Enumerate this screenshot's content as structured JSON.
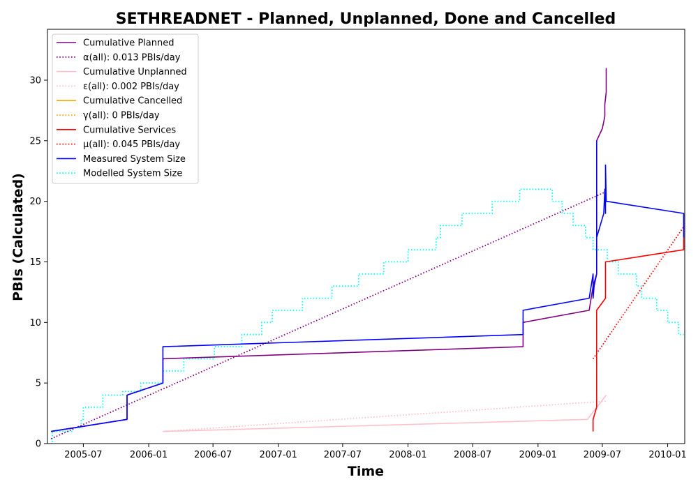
{
  "chart_data": {
    "type": "line",
    "title": "SETHREADNET - Planned, Unplanned, Done  and Cancelled",
    "xlabel": "Time",
    "ylabel": "PBIs (Calculated)",
    "xlim": [
      "2005-03-22",
      "2010-02-18"
    ],
    "ylim": [
      0,
      34.2
    ],
    "xticks": [
      {
        "date": "2005-07-01",
        "label": "2005-07"
      },
      {
        "date": "2006-01-01",
        "label": "2006-01"
      },
      {
        "date": "2006-07-01",
        "label": "2006-07"
      },
      {
        "date": "2007-01-01",
        "label": "2007-01"
      },
      {
        "date": "2007-07-01",
        "label": "2007-07"
      },
      {
        "date": "2008-01-01",
        "label": "2008-01"
      },
      {
        "date": "2008-07-01",
        "label": "2008-07"
      },
      {
        "date": "2009-01-01",
        "label": "2009-01"
      },
      {
        "date": "2009-07-01",
        "label": "2009-07"
      },
      {
        "date": "2010-01-01",
        "label": "2010-01"
      }
    ],
    "yticks": [
      0,
      5,
      10,
      15,
      20,
      25,
      30
    ],
    "grid": false,
    "legend_position": "top-left",
    "series": [
      {
        "name": "Cumulative Planned",
        "color": "#800080",
        "style": "solid",
        "points": [
          [
            "2005-04-01",
            1
          ],
          [
            "2005-11-01",
            2
          ],
          [
            "2005-11-01",
            4
          ],
          [
            "2006-02-10",
            5
          ],
          [
            "2006-02-10",
            7
          ],
          [
            "2008-11-20",
            8
          ],
          [
            "2008-11-20",
            10
          ],
          [
            "2009-05-25",
            11
          ],
          [
            "2009-06-05",
            13
          ],
          [
            "2009-06-15",
            14
          ],
          [
            "2009-06-15",
            25
          ],
          [
            "2009-07-01",
            26
          ],
          [
            "2009-07-08",
            27
          ],
          [
            "2009-07-08",
            28
          ],
          [
            "2009-07-12",
            29
          ],
          [
            "2009-07-12",
            31
          ]
        ]
      },
      {
        "name": "α(all): 0.013 PBIs/day",
        "color": "#800080",
        "style": "dotted",
        "points": [
          [
            "2005-04-01",
            0.4
          ],
          [
            "2009-07-12",
            20.8
          ]
        ]
      },
      {
        "name": "Cumulative Unplanned",
        "color": "#ffc0cb",
        "style": "solid",
        "points": [
          [
            "2006-02-10",
            1
          ],
          [
            "2009-05-20",
            2
          ],
          [
            "2009-07-12",
            4
          ]
        ]
      },
      {
        "name": "ε(all): 0.002 PBIs/day",
        "color": "#ffc0cb",
        "style": "dotted",
        "points": [
          [
            "2006-02-10",
            1
          ],
          [
            "2009-07-12",
            3.5
          ]
        ]
      },
      {
        "name": "Cumulative Cancelled",
        "color": "#ffa500",
        "style": "solid",
        "points": []
      },
      {
        "name": "γ(all): 0 PBIs/day",
        "color": "#ffa500",
        "style": "dotted",
        "points": []
      },
      {
        "name": "Cumulative Services",
        "color": "#ff0000",
        "style": "solid",
        "points": [
          [
            "2009-06-05",
            1
          ],
          [
            "2009-06-05",
            2
          ],
          [
            "2009-06-15",
            3
          ],
          [
            "2009-06-15",
            11
          ],
          [
            "2009-07-10",
            12
          ],
          [
            "2009-07-10",
            15
          ],
          [
            "2010-02-15",
            16
          ],
          [
            "2010-02-15",
            17
          ]
        ]
      },
      {
        "name": "μ(all): 0.045 PBIs/day",
        "color": "#ff0000",
        "style": "dotted",
        "points": [
          [
            "2009-06-05",
            7
          ],
          [
            "2010-02-15",
            17.9
          ]
        ]
      },
      {
        "name": "Measured System Size",
        "color": "#0000ff",
        "style": "solid",
        "points": [
          [
            "2005-04-01",
            1
          ],
          [
            "2005-11-01",
            2
          ],
          [
            "2005-11-01",
            4
          ],
          [
            "2006-02-10",
            5
          ],
          [
            "2006-02-10",
            8
          ],
          [
            "2008-11-20",
            9
          ],
          [
            "2008-11-20",
            11
          ],
          [
            "2009-05-25",
            12
          ],
          [
            "2009-06-05",
            14
          ],
          [
            "2009-06-05",
            12
          ],
          [
            "2009-06-08",
            13
          ],
          [
            "2009-06-15",
            14
          ],
          [
            "2009-06-15",
            25
          ],
          [
            "2009-06-15",
            17
          ],
          [
            "2009-07-05",
            19
          ],
          [
            "2009-07-08",
            21
          ],
          [
            "2009-07-10",
            19
          ],
          [
            "2009-07-10",
            23
          ],
          [
            "2009-07-12",
            20
          ],
          [
            "2010-02-15",
            19
          ],
          [
            "2010-02-15",
            17
          ]
        ]
      },
      {
        "name": "Modelled System Size",
        "color": "#00ffff",
        "style": "dotted",
        "steps": [
          [
            "2005-04-01",
            0
          ],
          [
            "2005-04-05",
            1
          ],
          [
            "2005-06-01",
            1.3
          ],
          [
            "2005-06-25",
            2
          ],
          [
            "2005-07-01",
            3
          ],
          [
            "2005-08-25",
            4
          ],
          [
            "2005-10-20",
            4.3
          ],
          [
            "2005-12-10",
            5
          ],
          [
            "2006-02-10",
            6
          ],
          [
            "2006-04-10",
            7
          ],
          [
            "2006-07-05",
            8
          ],
          [
            "2006-09-20",
            9
          ],
          [
            "2006-11-15",
            10
          ],
          [
            "2006-12-15",
            11
          ],
          [
            "2007-03-10",
            12
          ],
          [
            "2007-06-01",
            13
          ],
          [
            "2007-08-15",
            14
          ],
          [
            "2007-10-25",
            15
          ],
          [
            "2008-01-01",
            16
          ],
          [
            "2008-03-20",
            17
          ],
          [
            "2008-04-01",
            18
          ],
          [
            "2008-06-01",
            19
          ],
          [
            "2008-08-25",
            20
          ],
          [
            "2008-11-10",
            21
          ],
          [
            "2009-02-10",
            20
          ],
          [
            "2009-03-10",
            19
          ],
          [
            "2009-04-10",
            18
          ],
          [
            "2009-05-15",
            17
          ],
          [
            "2009-06-05",
            16
          ],
          [
            "2009-07-15",
            15
          ],
          [
            "2009-08-15",
            14
          ],
          [
            "2009-10-05",
            13
          ],
          [
            "2009-10-20",
            12
          ],
          [
            "2009-12-01",
            11
          ],
          [
            "2010-01-01",
            10
          ],
          [
            "2010-02-01",
            9
          ],
          [
            "2010-02-15",
            9
          ]
        ]
      }
    ]
  }
}
